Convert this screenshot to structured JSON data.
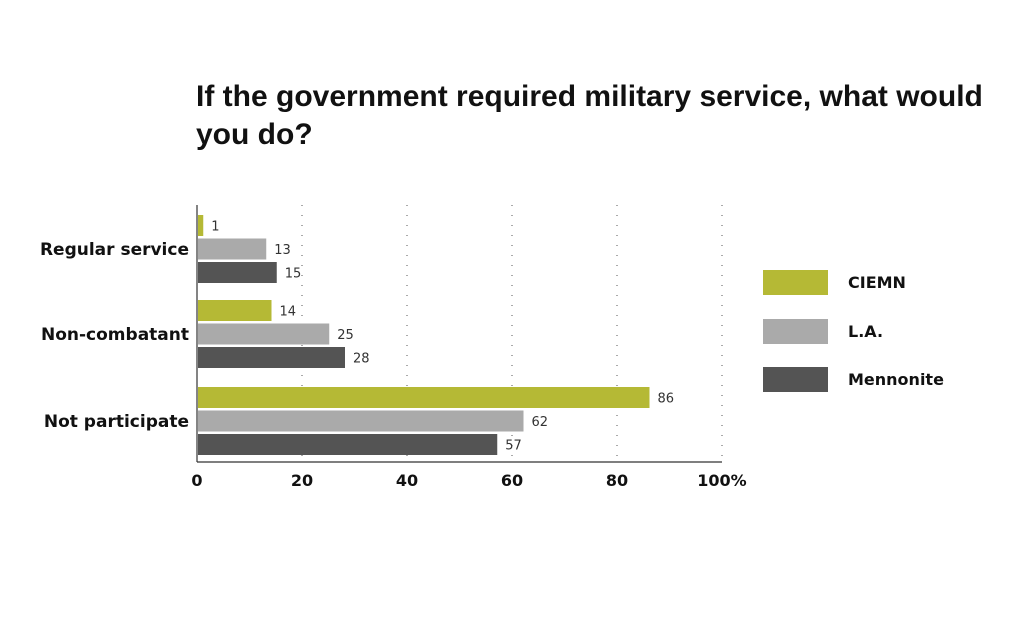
{
  "chart_data": {
    "type": "bar",
    "orientation": "horizontal",
    "title": "If the government required military service, what would you do?",
    "categories": [
      "Regular service",
      "Non-combatant",
      "Not participate"
    ],
    "series": [
      {
        "name": "CIEMN",
        "values": [
          1,
          14,
          86
        ],
        "color": "#b5b935"
      },
      {
        "name": "L.A.",
        "values": [
          13,
          25,
          62
        ],
        "color": "#aaaaaa"
      },
      {
        "name": "Mennonite",
        "values": [
          15,
          28,
          57
        ],
        "color": "#545454"
      }
    ],
    "xlim": [
      0,
      100
    ],
    "x_ticks": [
      "0",
      "20",
      "40",
      "60",
      "80",
      "100%"
    ],
    "grid": "vertical dotted",
    "legend": "right",
    "data_labels": true
  }
}
